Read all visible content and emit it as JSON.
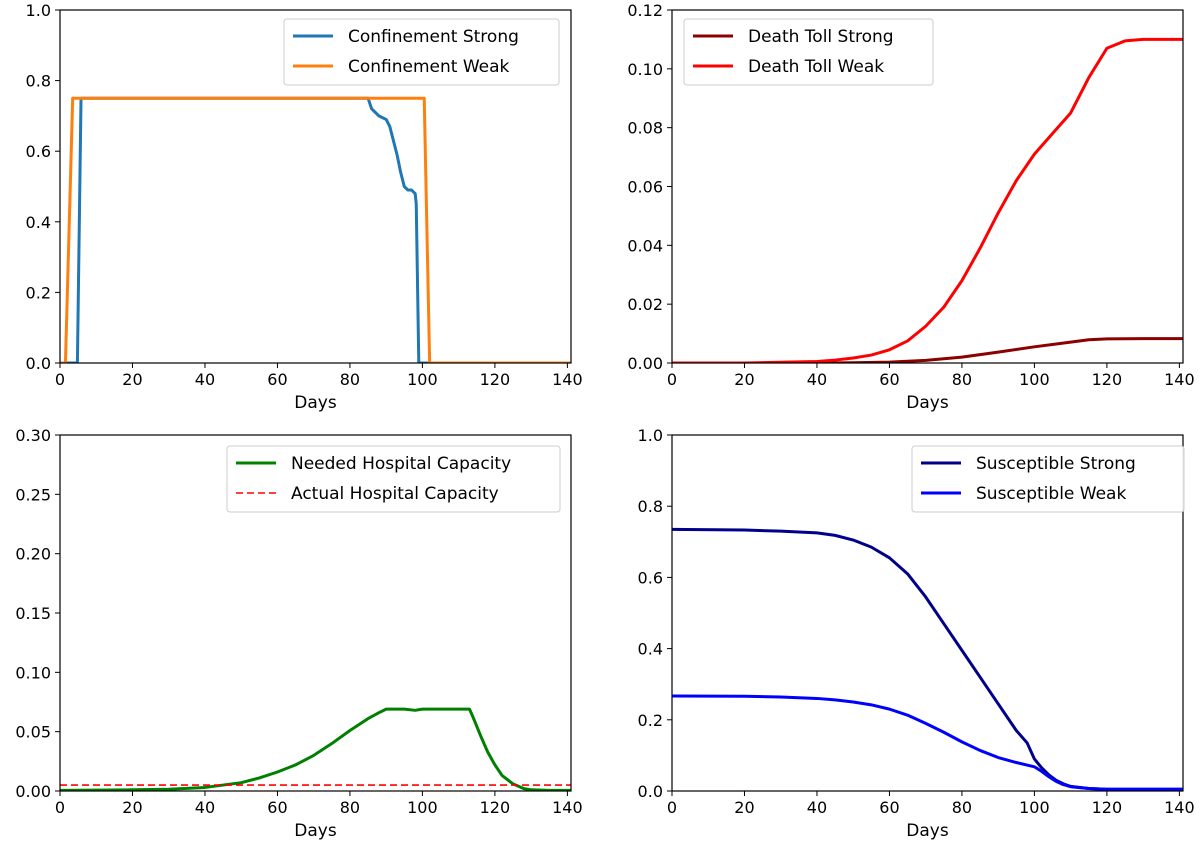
{
  "chart_data": [
    {
      "type": "line",
      "xlabel": "Days",
      "ylabel": "",
      "xlim": [
        0,
        141
      ],
      "ylim": [
        0,
        1.0
      ],
      "xticks": [
        0,
        20,
        40,
        60,
        80,
        100,
        120,
        140
      ],
      "yticks": [
        0.0,
        0.2,
        0.4,
        0.6,
        0.8,
        1.0
      ],
      "ytick_labels": [
        "0.0",
        "0.2",
        "0.4",
        "0.6",
        "0.8",
        "1.0"
      ],
      "legend_position": "top-right",
      "series": [
        {
          "name": "Confinement Strong",
          "color": "#1f77b4",
          "dash": "solid",
          "x": [
            0,
            4.8,
            5.8,
            85,
            86,
            87,
            88,
            90,
            91,
            92,
            93,
            94,
            95,
            96,
            97,
            98,
            98.3,
            99,
            100,
            141
          ],
          "y": [
            0,
            0,
            0.75,
            0.75,
            0.72,
            0.71,
            0.7,
            0.69,
            0.67,
            0.63,
            0.59,
            0.54,
            0.5,
            0.49,
            0.49,
            0.48,
            0.45,
            0,
            0,
            0
          ]
        },
        {
          "name": "Confinement Weak",
          "color": "#ff7f0e",
          "dash": "solid",
          "x": [
            0,
            1.5,
            3.5,
            100.5,
            102,
            141
          ],
          "y": [
            0,
            0,
            0.75,
            0.75,
            0,
            0
          ]
        }
      ]
    },
    {
      "type": "line",
      "xlabel": "Days",
      "ylabel": "",
      "xlim": [
        0,
        141
      ],
      "ylim": [
        0,
        0.12
      ],
      "xticks": [
        0,
        20,
        40,
        60,
        80,
        100,
        120,
        140
      ],
      "yticks": [
        0.0,
        0.02,
        0.04,
        0.06,
        0.08,
        0.1,
        0.12
      ],
      "ytick_labels": [
        "0.00",
        "0.02",
        "0.04",
        "0.06",
        "0.08",
        "0.10",
        "0.12"
      ],
      "legend_position": "top-left",
      "series": [
        {
          "name": "Death Toll Strong",
          "color": "#8b0000",
          "dash": "solid",
          "x": [
            0,
            20,
            40,
            50,
            60,
            70,
            80,
            90,
            100,
            110,
            115,
            120,
            130,
            141
          ],
          "y": [
            0,
            0,
            0,
            0.0001,
            0.0003,
            0.0009,
            0.002,
            0.0037,
            0.0055,
            0.0071,
            0.0079,
            0.0082,
            0.0083,
            0.0083
          ]
        },
        {
          "name": "Death Toll Weak",
          "color": "#ff0000",
          "dash": "solid",
          "x": [
            0,
            20,
            40,
            45,
            50,
            55,
            60,
            65,
            70,
            75,
            80,
            85,
            90,
            95,
            100,
            105,
            110,
            115,
            120,
            125,
            130,
            141
          ],
          "y": [
            0,
            0,
            0.0005,
            0.001,
            0.0017,
            0.0027,
            0.0045,
            0.0075,
            0.0125,
            0.019,
            0.028,
            0.039,
            0.051,
            0.062,
            0.071,
            0.078,
            0.085,
            0.097,
            0.107,
            0.1095,
            0.11,
            0.11
          ]
        }
      ]
    },
    {
      "type": "line",
      "xlabel": "Days",
      "ylabel": "",
      "xlim": [
        0,
        141
      ],
      "ylim": [
        0,
        0.3
      ],
      "xticks": [
        0,
        20,
        40,
        60,
        80,
        100,
        120,
        140
      ],
      "yticks": [
        0.0,
        0.05,
        0.1,
        0.15,
        0.2,
        0.25,
        0.3
      ],
      "ytick_labels": [
        "0.00",
        "0.05",
        "0.10",
        "0.15",
        "0.20",
        "0.25",
        "0.30"
      ],
      "legend_position": "top-right",
      "series": [
        {
          "name": "Needed Hospital Capacity",
          "color": "#008000",
          "dash": "solid",
          "x": [
            0,
            20,
            30,
            40,
            50,
            55,
            60,
            65,
            70,
            75,
            80,
            85,
            88,
            90,
            95,
            98,
            100,
            105,
            110,
            113,
            114,
            116,
            118,
            120,
            122,
            125,
            128,
            130,
            135,
            141
          ],
          "y": [
            0.0005,
            0.001,
            0.0015,
            0.003,
            0.007,
            0.011,
            0.016,
            0.022,
            0.03,
            0.04,
            0.051,
            0.061,
            0.066,
            0.069,
            0.069,
            0.068,
            0.069,
            0.069,
            0.069,
            0.069,
            0.062,
            0.047,
            0.033,
            0.022,
            0.013,
            0.006,
            0.002,
            0.001,
            0.0005,
            0.0005
          ]
        },
        {
          "name": "Actual Hospital Capacity",
          "color": "#ff0000",
          "dash": "dashed",
          "x": [
            0,
            141
          ],
          "y": [
            0.005,
            0.005
          ]
        }
      ]
    },
    {
      "type": "line",
      "xlabel": "Days",
      "ylabel": "",
      "xlim": [
        0,
        141
      ],
      "ylim": [
        0,
        1.0
      ],
      "xticks": [
        0,
        20,
        40,
        60,
        80,
        100,
        120,
        140
      ],
      "yticks": [
        0.0,
        0.2,
        0.4,
        0.6,
        0.8,
        1.0
      ],
      "ytick_labels": [
        "0.0",
        "0.2",
        "0.4",
        "0.6",
        "0.8",
        "1.0"
      ],
      "legend_position": "top-right",
      "series": [
        {
          "name": "Susceptible Strong",
          "color": "#00008b",
          "dash": "solid",
          "x": [
            0,
            20,
            30,
            40,
            45,
            50,
            55,
            60,
            65,
            70,
            75,
            80,
            85,
            90,
            95,
            98,
            100,
            102,
            104,
            106,
            108,
            110,
            115,
            120,
            130,
            141
          ],
          "y": [
            0.735,
            0.733,
            0.73,
            0.725,
            0.718,
            0.705,
            0.685,
            0.655,
            0.61,
            0.545,
            0.47,
            0.395,
            0.32,
            0.245,
            0.17,
            0.135,
            0.09,
            0.065,
            0.045,
            0.03,
            0.02,
            0.013,
            0.007,
            0.005,
            0.005,
            0.005
          ]
        },
        {
          "name": "Susceptible Weak",
          "color": "#0000ff",
          "dash": "solid",
          "x": [
            0,
            20,
            30,
            40,
            45,
            50,
            55,
            60,
            65,
            70,
            75,
            80,
            85,
            90,
            95,
            100,
            102,
            104,
            106,
            108,
            110,
            115,
            120,
            130,
            141
          ],
          "y": [
            0.267,
            0.266,
            0.264,
            0.26,
            0.256,
            0.25,
            0.242,
            0.23,
            0.213,
            0.19,
            0.165,
            0.138,
            0.114,
            0.094,
            0.08,
            0.068,
            0.055,
            0.04,
            0.027,
            0.018,
            0.012,
            0.007,
            0.005,
            0.005,
            0.005
          ]
        }
      ]
    }
  ]
}
